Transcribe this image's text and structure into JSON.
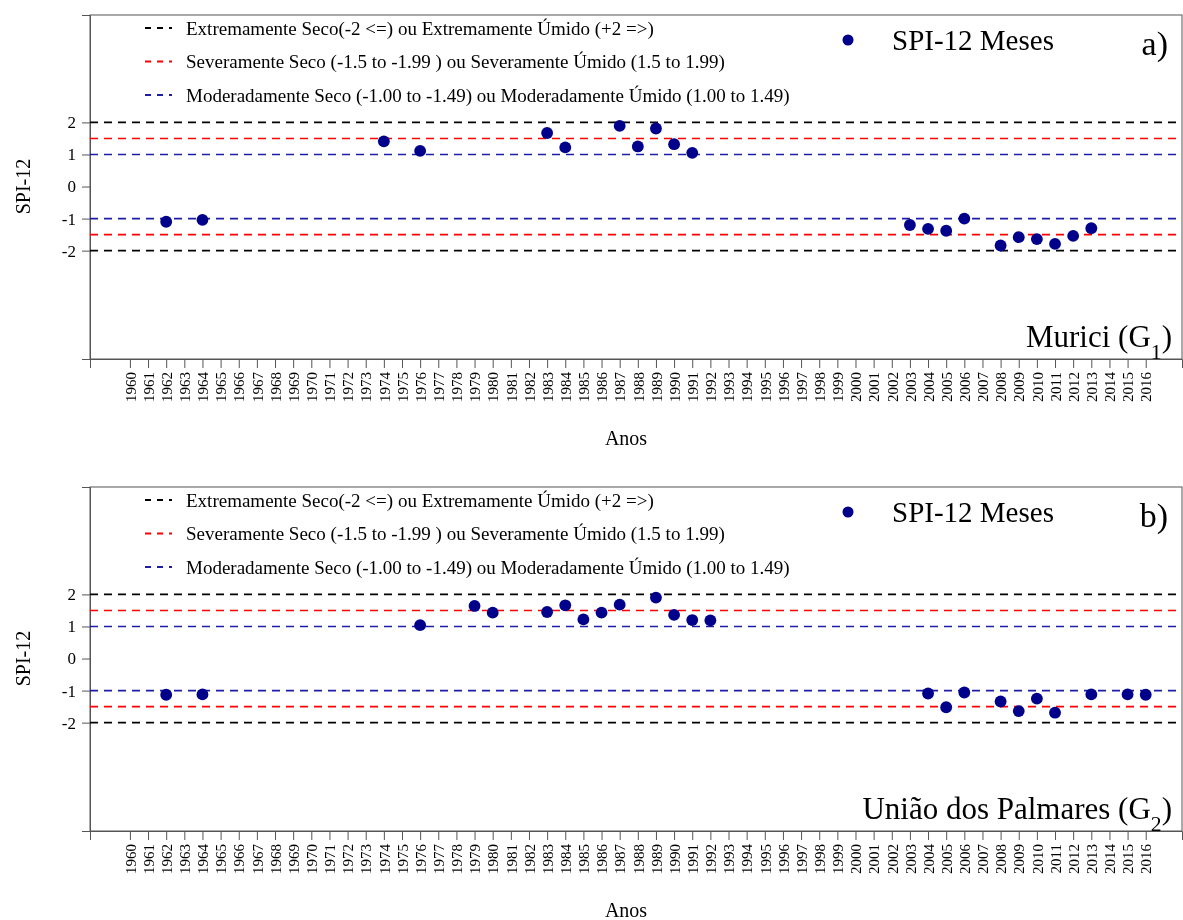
{
  "chart_data": [
    {
      "type": "scatter",
      "xlabel": "Anos",
      "ylabel": "SPI-12",
      "xlim": [
        1957.8,
        2018
      ],
      "ylim": [
        -5.38,
        5.35
      ],
      "yticks": [
        -2,
        -1,
        0,
        1,
        2
      ],
      "xticks": [
        1960,
        1961,
        1962,
        1963,
        1964,
        1965,
        1966,
        1967,
        1968,
        1969,
        1970,
        1971,
        1972,
        1973,
        1974,
        1975,
        1976,
        1977,
        1978,
        1979,
        1980,
        1981,
        1982,
        1983,
        1984,
        1985,
        1986,
        1987,
        1988,
        1989,
        1990,
        1991,
        1992,
        1993,
        1994,
        1995,
        1996,
        1997,
        1998,
        1999,
        2000,
        2001,
        2002,
        2003,
        2004,
        2005,
        2006,
        2007,
        2008,
        2009,
        2010,
        2011,
        2012,
        2013,
        2014,
        2015,
        2016
      ],
      "marker": "circle",
      "grid": false,
      "legend": "top",
      "series": [
        {
          "name": "SPI-12 Meses",
          "color": "#00008b",
          "x": [
            1962,
            1964,
            1974,
            1976,
            1983,
            1984,
            1987,
            1988,
            1989,
            1990,
            1991,
            2003,
            2004,
            2005,
            2006,
            2008,
            2009,
            2010,
            2011,
            2012,
            2013
          ],
          "values": [
            -1.1,
            -1.04,
            1.41,
            1.11,
            1.67,
            1.22,
            1.89,
            1.25,
            1.81,
            1.32,
            1.05,
            -1.2,
            -1.32,
            -1.38,
            -1.0,
            -1.84,
            -1.58,
            -1.64,
            -1.79,
            -1.54,
            -1.3
          ]
        }
      ],
      "ref_lines": [
        {
          "axis": "y",
          "value": 2,
          "label": "Extremamente Seco(-2 <=) ou Extremamente Úmido (+2 =>)",
          "color": "#000000",
          "line_style": "dashed"
        },
        {
          "axis": "y",
          "value": 1.5,
          "label": "Severamente Seco (-1.5 to -1.99 ) ou Severamente Úmido (1.5 to 1.99)",
          "color": "#ff0000",
          "line_style": "dashed"
        },
        {
          "axis": "y",
          "value": 1,
          "label": "Moderadamente Seco (-1.00 to -1.49) ou Moderadamente Úmido (1.00 to 1.49)",
          "color": "#1c1ca8",
          "line_style": "dashed"
        },
        {
          "axis": "y",
          "value": -1,
          "color": "#1c1ca8",
          "line_style": "dashed"
        },
        {
          "axis": "y",
          "value": -1.5,
          "color": "#ff0000",
          "line_style": "dashed"
        },
        {
          "axis": "y",
          "value": -2,
          "color": "#000000",
          "line_style": "dashed"
        }
      ],
      "annotations": [
        "a)",
        "Murici  (G$_{1}$)"
      ]
    },
    {
      "type": "scatter",
      "xlabel": "Anos",
      "ylabel": "SPI-12",
      "xlim": [
        1957.8,
        2018
      ],
      "ylim": [
        -5.38,
        5.35
      ],
      "yticks": [
        -2,
        -1,
        0,
        1,
        2
      ],
      "xticks": [
        1960,
        1961,
        1962,
        1963,
        1964,
        1965,
        1966,
        1967,
        1968,
        1969,
        1970,
        1971,
        1972,
        1973,
        1974,
        1975,
        1976,
        1977,
        1978,
        1979,
        1980,
        1981,
        1982,
        1983,
        1984,
        1985,
        1986,
        1987,
        1988,
        1989,
        1990,
        1991,
        1992,
        1993,
        1994,
        1995,
        1996,
        1997,
        1998,
        1999,
        2000,
        2001,
        2002,
        2003,
        2004,
        2005,
        2006,
        2007,
        2008,
        2009,
        2010,
        2011,
        2012,
        2013,
        2014,
        2015,
        2016
      ],
      "marker": "circle",
      "grid": false,
      "legend": "top",
      "series": [
        {
          "name": "SPI-12 Meses",
          "color": "#00008b",
          "x": [
            1962,
            1964,
            1976,
            1979,
            1980,
            1983,
            1984,
            1985,
            1986,
            1987,
            1989,
            1990,
            1991,
            1992,
            2004,
            2005,
            2006,
            2008,
            2009,
            2010,
            2011,
            2013,
            2015,
            2016
          ],
          "values": [
            -1.13,
            -1.12,
            1.04,
            1.64,
            1.43,
            1.45,
            1.66,
            1.22,
            1.43,
            1.68,
            1.9,
            1.36,
            1.2,
            1.19,
            -1.09,
            -1.52,
            -1.06,
            -1.34,
            -1.64,
            -1.25,
            -1.69,
            -1.12,
            -1.12,
            -1.13
          ]
        }
      ],
      "ref_lines": [
        {
          "axis": "y",
          "value": 2,
          "label": "Extremamente Seco(-2 <=) ou Extremamente Úmido (+2 =>)",
          "color": "#000000",
          "line_style": "dashed"
        },
        {
          "axis": "y",
          "value": 1.5,
          "label": "Severamente Seco (-1.5 to -1.99 ) ou Severamente Úmido (1.5 to 1.99)",
          "color": "#ff0000",
          "line_style": "dashed"
        },
        {
          "axis": "y",
          "value": 1,
          "label": "Moderadamente Seco (-1.00 to -1.49) ou Moderadamente Úmido (1.00 to 1.49)",
          "color": "#1c1ca8",
          "line_style": "dashed"
        },
        {
          "axis": "y",
          "value": -1,
          "color": "#1c1ca8",
          "line_style": "dashed"
        },
        {
          "axis": "y",
          "value": -1.5,
          "color": "#ff0000",
          "line_style": "dashed"
        },
        {
          "axis": "y",
          "value": -2,
          "color": "#000000",
          "line_style": "dashed"
        }
      ],
      "annotations": [
        "b)",
        "União dos Palmares  (G$_{2}$)"
      ]
    }
  ]
}
